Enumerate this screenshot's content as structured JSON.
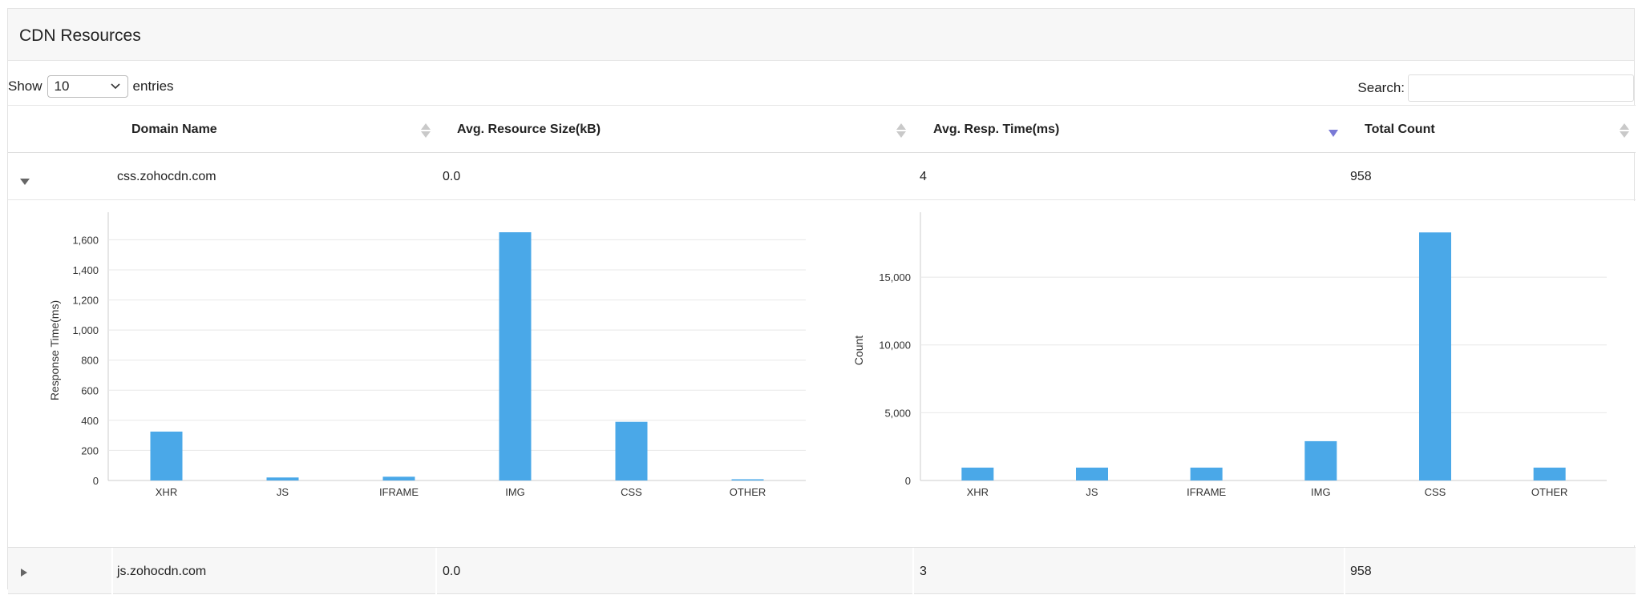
{
  "panel": {
    "title": "CDN Resources"
  },
  "controls": {
    "show_label": "Show",
    "entries_value": "10",
    "entries_label": "entries",
    "search_label": "Search:",
    "search_value": ""
  },
  "table": {
    "columns": [
      {
        "label": "Domain Name",
        "sort": "none"
      },
      {
        "label": "Avg. Resource Size(kB)",
        "sort": "none"
      },
      {
        "label": "Avg. Resp. Time(ms)",
        "sort": "descending"
      },
      {
        "label": "Total Count",
        "sort": "none"
      }
    ],
    "rows": [
      {
        "domain": "css.zohocdn.com",
        "avg_size": "0.0",
        "avg_resp": "4",
        "total": "958",
        "expanded": true
      },
      {
        "domain": "js.zohocdn.com",
        "avg_size": "0.0",
        "avg_resp": "3",
        "total": "958",
        "expanded": false
      }
    ]
  },
  "chart_data": [
    {
      "type": "bar",
      "title": "",
      "categories": [
        "XHR",
        "JS",
        "IFRAME",
        "IMG",
        "CSS",
        "OTHER"
      ],
      "values": [
        325,
        20,
        25,
        1650,
        390,
        8
      ],
      "xlabel": "",
      "ylabel": "Response Time(ms)",
      "ylim": [
        0,
        1730
      ],
      "yticks": [
        0,
        200,
        400,
        600,
        800,
        1000,
        1200,
        1400,
        1600
      ],
      "ytick_labels": [
        "0",
        "200",
        "400",
        "600",
        "800",
        "1,000",
        "1,200",
        "1,400",
        "1,600"
      ],
      "grid": true,
      "bar_color": "#4aa8e8"
    },
    {
      "type": "bar",
      "title": "",
      "categories": [
        "XHR",
        "JS",
        "IFRAME",
        "IMG",
        "CSS",
        "OTHER"
      ],
      "values": [
        950,
        950,
        950,
        2900,
        18300,
        950
      ],
      "xlabel": "",
      "ylabel": "Count",
      "ylim": [
        0,
        19200
      ],
      "yticks": [
        0,
        5000,
        10000,
        15000
      ],
      "ytick_labels": [
        "0",
        "5,000",
        "10,000",
        "15,000"
      ],
      "grid": true,
      "bar_color": "#4aa8e8"
    }
  ]
}
